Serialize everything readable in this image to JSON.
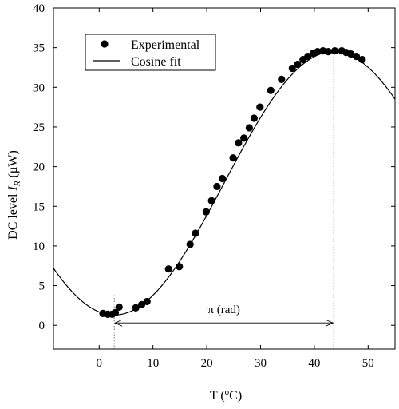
{
  "chart_data": {
    "type": "scatter",
    "xlabel": "T (",
    "xlabel_sup": "o",
    "xlabel_suffix": "C)",
    "ylabel": "DC level ",
    "ylabel_symbol": "I",
    "ylabel_subscript": "R",
    "ylabel_unit": " (μW)",
    "xlim": [
      -8.5,
      55
    ],
    "ylim": [
      -3,
      40
    ],
    "xticks": [
      0,
      10,
      20,
      30,
      40,
      50
    ],
    "yticks": [
      0,
      5,
      10,
      15,
      20,
      25,
      30,
      35,
      40
    ],
    "grid": false,
    "legend_position": "top-left",
    "series": [
      {
        "name": "Experimental",
        "kind": "markers",
        "x": [
          0.7,
          1.6,
          2.4,
          3.0,
          3.7,
          6.8,
          7.9,
          8.9,
          12.9,
          14.9,
          16.9,
          17.9,
          19.9,
          20.9,
          21.9,
          22.9,
          24.9,
          25.9,
          26.9,
          27.9,
          28.8,
          29.9,
          31.9,
          33.9,
          35.9,
          36.9,
          37.9,
          38.8,
          39.8,
          40.6,
          41.6,
          42.6,
          43.8,
          45.1,
          45.9,
          46.8,
          47.8,
          48.9
        ],
        "y": [
          1.5,
          1.4,
          1.4,
          1.6,
          2.3,
          2.2,
          2.6,
          3.0,
          7.1,
          7.4,
          10.2,
          11.6,
          14.3,
          15.7,
          17.5,
          18.5,
          21.1,
          23.0,
          23.6,
          24.9,
          26.1,
          27.5,
          29.6,
          31.0,
          32.4,
          32.9,
          33.5,
          33.9,
          34.3,
          34.5,
          34.6,
          34.5,
          34.6,
          34.6,
          34.4,
          34.2,
          33.9,
          33.5
        ]
      },
      {
        "name": "Cosine fit",
        "kind": "line",
        "model": {
          "mean": 17.9,
          "amplitude": 16.6,
          "period": 81.6,
          "t_max": 43.6
        }
      }
    ],
    "annotations": {
      "vline_min_x": 2.8,
      "vline_max_x": 43.6,
      "arrow_y": 0.3,
      "arrow_label": "π (rad)"
    }
  }
}
